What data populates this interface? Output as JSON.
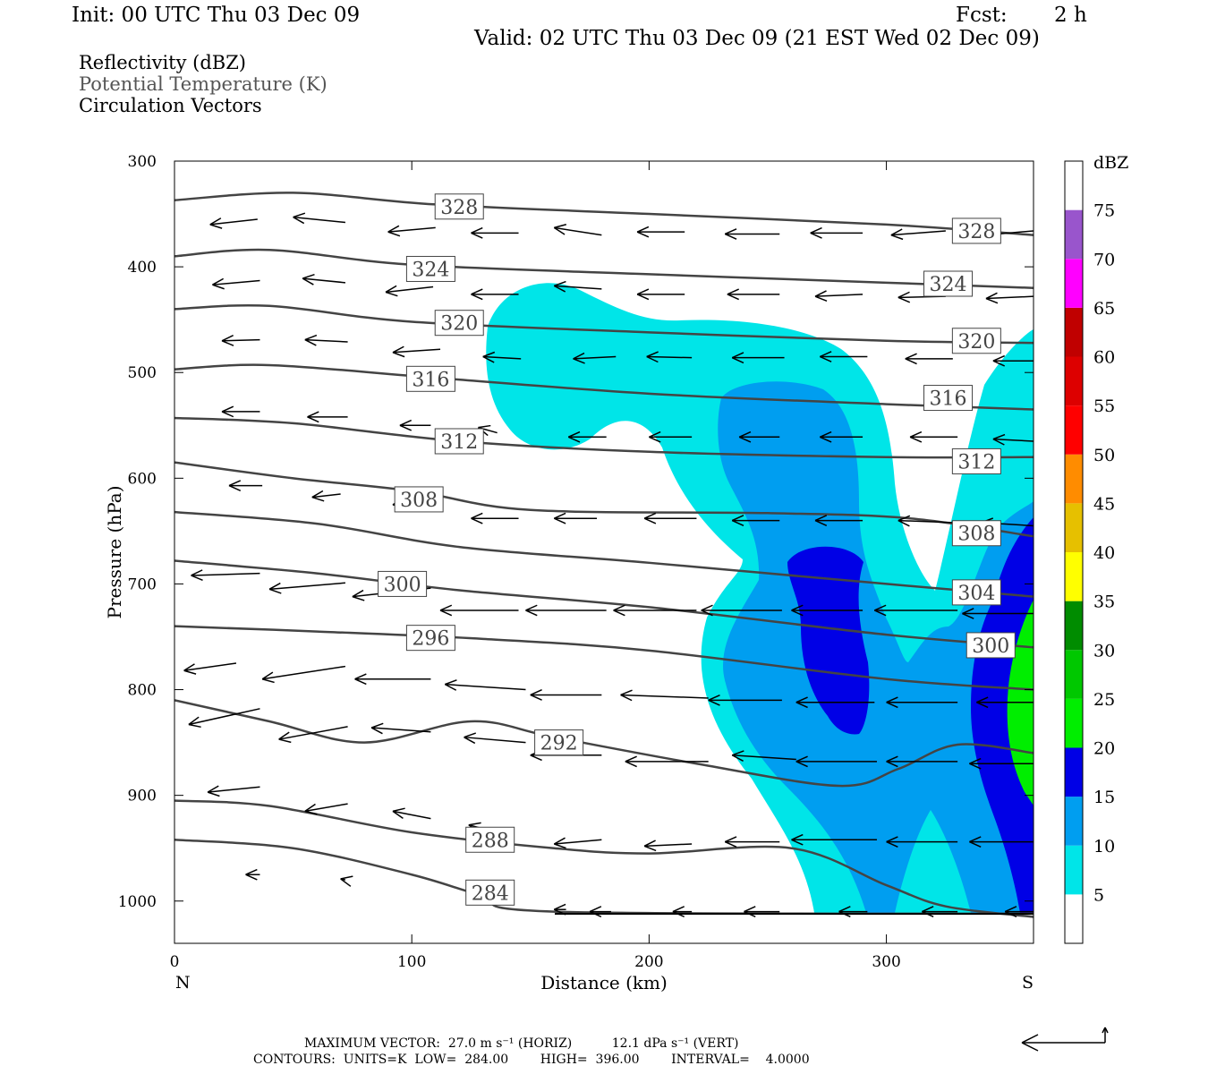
{
  "header": {
    "init": "Init: 00 UTC Thu 03 Dec 09",
    "fcst_label": "Fcst:",
    "fcst_value": "2 h",
    "valid": "Valid: 02 UTC Thu 03 Dec 09 (21 EST Wed 02 Dec 09)"
  },
  "fields": {
    "reflectivity": "Reflectivity (dBZ)",
    "theta": "Potential Temperature (K)",
    "vectors": "Circulation Vectors"
  },
  "footer": {
    "max_vector": "MAXIMUM VECTOR:  27.0 m s⁻¹ (HORIZ)          12.1 dPa s⁻¹ (VERT)",
    "contours": "CONTOURS:  UNITS=K  LOW=  284.00        HIGH=  396.00        INTERVAL=    4.0000"
  },
  "colors": {
    "c5": "#00e5e8",
    "c10": "#009ef0",
    "c15": "#0000e6",
    "c20": "#00ee00",
    "contour": "#444444"
  },
  "chart_data": {
    "type": "contour",
    "xlabel": "Distance (km)",
    "ylabel": "Pressure (hPa)",
    "x_range": [
      0,
      362
    ],
    "y_range": [
      300,
      1040
    ],
    "x_ticks": [
      0,
      100,
      200,
      300
    ],
    "y_ticks": [
      300,
      400,
      500,
      600,
      700,
      800,
      900,
      1000
    ],
    "x_end_labels": {
      "left": "N",
      "right": "S"
    },
    "colorbar": {
      "unit": "dBZ",
      "levels": [
        5,
        10,
        15,
        20,
        25,
        30,
        35,
        40,
        45,
        50,
        55,
        60,
        65,
        70,
        75
      ],
      "colors": [
        "#ffffff",
        "#00e5e8",
        "#009ef0",
        "#0000e6",
        "#00ee00",
        "#00c800",
        "#008c00",
        "#ffff00",
        "#e6c000",
        "#ff8c00",
        "#ff0000",
        "#dd0000",
        "#c00000",
        "#ff00ff",
        "#9955cc",
        "#ffffff"
      ]
    },
    "theta_contours": [
      {
        "value": 328,
        "label": "328",
        "points": [
          [
            0,
            337
          ],
          [
            50,
            330
          ],
          [
            110,
            341
          ],
          [
            200,
            350
          ],
          [
            300,
            360
          ],
          [
            362,
            370
          ]
        ],
        "labels_at": [
          [
            120,
            343
          ],
          [
            338,
            366
          ]
        ]
      },
      {
        "value": 324,
        "label": "324",
        "points": [
          [
            0,
            390
          ],
          [
            40,
            384
          ],
          [
            100,
            398
          ],
          [
            200,
            407
          ],
          [
            300,
            415
          ],
          [
            362,
            420
          ]
        ],
        "labels_at": [
          [
            108,
            402
          ],
          [
            326,
            416
          ]
        ]
      },
      {
        "value": 320,
        "label": "320",
        "points": [
          [
            0,
            440
          ],
          [
            40,
            437
          ],
          [
            100,
            452
          ],
          [
            200,
            462
          ],
          [
            300,
            470
          ],
          [
            362,
            472
          ]
        ],
        "labels_at": [
          [
            120,
            453
          ],
          [
            338,
            470
          ]
        ]
      },
      {
        "value": 316,
        "label": "316",
        "points": [
          [
            0,
            497
          ],
          [
            40,
            493
          ],
          [
            110,
            505
          ],
          [
            200,
            520
          ],
          [
            300,
            530
          ],
          [
            362,
            535
          ]
        ],
        "labels_at": [
          [
            108,
            506
          ],
          [
            326,
            524
          ]
        ]
      },
      {
        "value": 312,
        "label": "312",
        "points": [
          [
            0,
            543
          ],
          [
            50,
            548
          ],
          [
            120,
            565
          ],
          [
            200,
            575
          ],
          [
            300,
            580
          ],
          [
            362,
            580
          ]
        ],
        "labels_at": [
          [
            120,
            565
          ],
          [
            338,
            584
          ]
        ]
      },
      {
        "value": 308,
        "label": "308",
        "points": [
          [
            0,
            585
          ],
          [
            50,
            600
          ],
          [
            100,
            612
          ],
          [
            150,
            630
          ],
          [
            250,
            633
          ],
          [
            310,
            638
          ],
          [
            362,
            655
          ]
        ],
        "labels_at": [
          [
            103,
            620
          ],
          [
            338,
            652
          ]
        ]
      },
      {
        "value": 304,
        "label": "304",
        "points": [
          [
            0,
            632
          ],
          [
            60,
            643
          ],
          [
            120,
            665
          ],
          [
            200,
            680
          ],
          [
            300,
            700
          ],
          [
            362,
            712
          ]
        ],
        "labels_at": [
          [
            338,
            708
          ]
        ]
      },
      {
        "value": 300,
        "label": "300",
        "points": [
          [
            0,
            678
          ],
          [
            60,
            690
          ],
          [
            120,
            706
          ],
          [
            200,
            722
          ],
          [
            300,
            748
          ],
          [
            362,
            760
          ]
        ],
        "labels_at": [
          [
            96,
            700
          ],
          [
            344,
            758
          ]
        ]
      },
      {
        "value": 296,
        "label": "296",
        "points": [
          [
            0,
            740
          ],
          [
            60,
            745
          ],
          [
            130,
            752
          ],
          [
            200,
            763
          ],
          [
            300,
            790
          ],
          [
            362,
            800
          ]
        ],
        "labels_at": [
          [
            108,
            751
          ]
        ]
      },
      {
        "value": 292,
        "label": "292",
        "points": [
          [
            0,
            810
          ],
          [
            40,
            830
          ],
          [
            80,
            850
          ],
          [
            125,
            830
          ],
          [
            160,
            845
          ],
          [
            220,
            870
          ],
          [
            280,
            891
          ],
          [
            305,
            875
          ],
          [
            330,
            852
          ],
          [
            362,
            860
          ]
        ],
        "labels_at": [
          [
            162,
            850
          ]
        ]
      },
      {
        "value": 288,
        "label": "288",
        "points": [
          [
            0,
            905
          ],
          [
            40,
            910
          ],
          [
            100,
            935
          ],
          [
            160,
            950
          ],
          [
            200,
            955
          ],
          [
            260,
            950
          ],
          [
            300,
            985
          ],
          [
            325,
            1005
          ],
          [
            362,
            1015
          ]
        ],
        "labels_at": [
          [
            133,
            942
          ]
        ]
      },
      {
        "value": 284,
        "label": "284",
        "points": [
          [
            0,
            942
          ],
          [
            50,
            950
          ],
          [
            100,
            975
          ],
          [
            130,
            995
          ],
          [
            160,
            1010
          ],
          [
            362,
            1012
          ]
        ],
        "labels_at": [
          [
            133,
            992
          ]
        ]
      }
    ],
    "vectors_hpa": [
      [
        [
          15,
          360,
          35,
          355
        ],
        [
          50,
          353,
          72,
          358
        ],
        [
          90,
          367,
          110,
          363
        ],
        [
          125,
          368,
          145,
          368
        ],
        [
          160,
          363,
          180,
          370
        ],
        [
          195,
          367,
          215,
          367
        ],
        [
          232,
          369,
          255,
          369
        ],
        [
          268,
          368,
          290,
          368
        ],
        [
          302,
          370,
          325,
          366
        ],
        [
          342,
          370,
          362,
          366
        ]
      ],
      [
        [
          16,
          417,
          36,
          413
        ],
        [
          54,
          411,
          72,
          415
        ],
        [
          89,
          424,
          109,
          419
        ],
        [
          125,
          426,
          145,
          426
        ],
        [
          160,
          418,
          180,
          421
        ],
        [
          195,
          426,
          215,
          426
        ],
        [
          233,
          426,
          255,
          426
        ],
        [
          270,
          428,
          290,
          426
        ],
        [
          305,
          429,
          325,
          428
        ],
        [
          342,
          430,
          362,
          428
        ]
      ],
      [
        [
          20,
          470,
          36,
          469
        ],
        [
          55,
          469,
          73,
          471
        ],
        [
          92,
          481,
          112,
          478
        ],
        [
          130,
          485,
          146,
          487
        ],
        [
          168,
          487,
          186,
          485
        ],
        [
          199,
          485,
          218,
          486
        ],
        [
          235,
          486,
          257,
          486
        ],
        [
          272,
          485,
          292,
          485
        ],
        [
          308,
          487,
          328,
          487
        ],
        [
          345,
          489,
          362,
          489
        ]
      ],
      [
        [
          20,
          537,
          36,
          537
        ],
        [
          56,
          542,
          73,
          542
        ],
        [
          95,
          550,
          108,
          550
        ],
        [
          128,
          552,
          136,
          557
        ],
        [
          166,
          561,
          182,
          561
        ],
        [
          200,
          561,
          218,
          561
        ],
        [
          238,
          561,
          255,
          561
        ],
        [
          272,
          561,
          290,
          561
        ],
        [
          310,
          561,
          330,
          561
        ],
        [
          345,
          563,
          362,
          565
        ]
      ],
      [
        [
          23,
          607,
          37,
          607
        ],
        [
          58,
          618,
          70,
          615
        ],
        [
          92,
          625,
          106,
          621
        ],
        [
          125,
          638,
          145,
          638
        ],
        [
          160,
          638,
          178,
          638
        ],
        [
          198,
          638,
          220,
          638
        ],
        [
          235,
          640,
          255,
          640
        ],
        [
          270,
          640,
          290,
          640
        ],
        [
          305,
          640,
          328,
          642
        ],
        [
          340,
          642,
          362,
          645
        ]
      ],
      [
        [
          7,
          692,
          36,
          690
        ],
        [
          40,
          705,
          72,
          699
        ],
        [
          75,
          712,
          108,
          704
        ],
        [
          112,
          725,
          145,
          725
        ],
        [
          148,
          725,
          182,
          725
        ],
        [
          185,
          725,
          220,
          725
        ],
        [
          222,
          725,
          256,
          725
        ],
        [
          260,
          725,
          290,
          725
        ],
        [
          295,
          725,
          330,
          725
        ],
        [
          332,
          728,
          362,
          728
        ]
      ],
      [
        [
          4,
          782,
          26,
          775
        ],
        [
          37,
          790,
          72,
          778
        ],
        [
          76,
          790,
          108,
          790
        ],
        [
          114,
          795,
          148,
          800
        ],
        [
          150,
          805,
          180,
          805
        ],
        [
          188,
          805,
          225,
          808
        ],
        [
          225,
          810,
          256,
          810
        ],
        [
          262,
          812,
          295,
          812
        ],
        [
          300,
          812,
          330,
          812
        ],
        [
          338,
          812,
          362,
          812
        ]
      ],
      [
        [
          6,
          833,
          36,
          818
        ],
        [
          44,
          847,
          73,
          835
        ],
        [
          83,
          836,
          108,
          840
        ],
        [
          122,
          845,
          148,
          850
        ],
        [
          150,
          862,
          180,
          862
        ],
        [
          190,
          868,
          225,
          868
        ],
        [
          235,
          862,
          262,
          866
        ],
        [
          262,
          868,
          296,
          868
        ],
        [
          300,
          868,
          330,
          868
        ],
        [
          335,
          870,
          362,
          870
        ]
      ],
      [
        [
          14,
          897,
          36,
          892
        ],
        [
          55,
          915,
          73,
          908
        ],
        [
          92,
          915,
          108,
          922
        ],
        [
          124,
          928,
          136,
          935
        ],
        [
          160,
          946,
          180,
          942
        ],
        [
          198,
          948,
          218,
          946
        ],
        [
          232,
          944,
          255,
          944
        ],
        [
          260,
          942,
          296,
          942
        ],
        [
          300,
          944,
          330,
          944
        ],
        [
          335,
          944,
          362,
          944
        ]
      ],
      [
        [
          30,
          975,
          36,
          975
        ],
        [
          70,
          979,
          72,
          980
        ],
        [
          108,
          988,
          108,
          988
        ],
        [
          160,
          1008,
          165,
          1008
        ],
        [
          175,
          1010,
          184,
          1010
        ],
        [
          210,
          1010,
          218,
          1010
        ],
        [
          240,
          1010,
          255,
          1010
        ],
        [
          280,
          1010,
          292,
          1010
        ],
        [
          315,
          1010,
          330,
          1010
        ],
        [
          350,
          1010,
          362,
          1010
        ]
      ]
    ]
  }
}
